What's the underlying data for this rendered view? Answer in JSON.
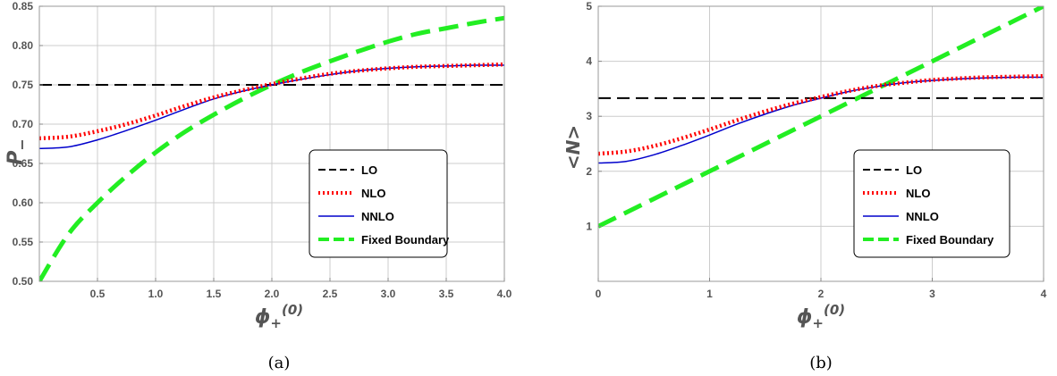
{
  "chart_data": [
    {
      "type": "line",
      "caption": "(a)",
      "xlabel": "ϕ",
      "xlabel_sub": "+",
      "xlabel_sup": "(0)",
      "ylabel": "P",
      "ylabel_sub": "−",
      "xlim": [
        0,
        4
      ],
      "ylim": [
        0.5,
        0.85
      ],
      "xticks": [
        0.5,
        1.0,
        1.5,
        2.0,
        2.5,
        3.0,
        3.5,
        4.0
      ],
      "xtick_labels": [
        "0.5",
        "1.0",
        "1.5",
        "2.0",
        "2.5",
        "3.0",
        "3.5",
        "4.0"
      ],
      "yticks": [
        0.5,
        0.55,
        0.6,
        0.65,
        0.7,
        0.75,
        0.8,
        0.85
      ],
      "ytick_labels": [
        "0.50",
        "0.55",
        "0.60",
        "0.65",
        "0.70",
        "0.75",
        "0.80",
        "0.85"
      ],
      "grid": true,
      "legend_position": "bottom-right",
      "x": [
        0,
        0.25,
        0.5,
        0.75,
        1.0,
        1.25,
        1.5,
        1.75,
        2.0,
        2.25,
        2.5,
        2.75,
        3.0,
        3.25,
        3.5,
        3.75,
        4.0
      ],
      "series": [
        {
          "name": "LO",
          "color": "#000000",
          "style": "long-dash",
          "values": [
            0.75,
            0.75,
            0.75,
            0.75,
            0.75,
            0.75,
            0.75,
            0.75,
            0.75,
            0.75,
            0.75,
            0.75,
            0.75,
            0.75,
            0.75,
            0.75,
            0.75
          ]
        },
        {
          "name": "NLO",
          "color": "#ff0000",
          "style": "dotted",
          "values": [
            0.682,
            0.684,
            0.691,
            0.7,
            0.711,
            0.723,
            0.734,
            0.743,
            0.751,
            0.758,
            0.764,
            0.768,
            0.771,
            0.773,
            0.774,
            0.775,
            0.776
          ]
        },
        {
          "name": "NNLO",
          "color": "#0000cc",
          "style": "solid",
          "values": [
            0.669,
            0.671,
            0.68,
            0.692,
            0.705,
            0.719,
            0.732,
            0.742,
            0.75,
            0.757,
            0.763,
            0.768,
            0.771,
            0.773,
            0.774,
            0.775,
            0.775
          ]
        },
        {
          "name": "Fixed Boundary",
          "color": "#22ee22",
          "style": "dashed-thick",
          "values": [
            0.5,
            0.56,
            0.6,
            0.634,
            0.664,
            0.69,
            0.712,
            0.732,
            0.75,
            0.766,
            0.78,
            0.793,
            0.805,
            0.815,
            0.822,
            0.829,
            0.835
          ]
        }
      ]
    },
    {
      "type": "line",
      "caption": "(b)",
      "xlabel": "ϕ",
      "xlabel_sub": "+",
      "xlabel_sup": "(0)",
      "ylabel": "<N>",
      "xlim": [
        0,
        4
      ],
      "ylim": [
        0,
        5
      ],
      "xticks": [
        0,
        1,
        2,
        3,
        4
      ],
      "xtick_labels": [
        "0",
        "1",
        "2",
        "3",
        "4"
      ],
      "yticks": [
        1,
        2,
        3,
        4,
        5
      ],
      "ytick_labels": [
        "1",
        "2",
        "3",
        "4",
        "5"
      ],
      "grid": true,
      "legend_position": "bottom-right",
      "x": [
        0,
        0.25,
        0.5,
        0.75,
        1.0,
        1.25,
        1.5,
        1.75,
        2.0,
        2.25,
        2.5,
        2.75,
        3.0,
        3.25,
        3.5,
        3.75,
        4.0
      ],
      "series": [
        {
          "name": "LO",
          "color": "#000000",
          "style": "long-dash",
          "values": [
            3.33,
            3.33,
            3.33,
            3.33,
            3.33,
            3.33,
            3.33,
            3.33,
            3.33,
            3.33,
            3.33,
            3.33,
            3.33,
            3.33,
            3.33,
            3.33,
            3.33
          ]
        },
        {
          "name": "NLO",
          "color": "#ff0000",
          "style": "dotted",
          "values": [
            2.32,
            2.36,
            2.46,
            2.6,
            2.76,
            2.93,
            3.09,
            3.23,
            3.35,
            3.46,
            3.55,
            3.61,
            3.66,
            3.69,
            3.71,
            3.72,
            3.73
          ]
        },
        {
          "name": "NNLO",
          "color": "#0000cc",
          "style": "solid",
          "values": [
            2.15,
            2.18,
            2.3,
            2.47,
            2.66,
            2.86,
            3.04,
            3.2,
            3.33,
            3.45,
            3.54,
            3.61,
            3.65,
            3.68,
            3.7,
            3.71,
            3.71
          ]
        },
        {
          "name": "Fixed Boundary",
          "color": "#22ee22",
          "style": "dashed-thick",
          "values": [
            1.0,
            1.25,
            1.5,
            1.75,
            2.0,
            2.25,
            2.5,
            2.75,
            3.0,
            3.25,
            3.5,
            3.75,
            4.0,
            4.25,
            4.5,
            4.75,
            5.0
          ]
        }
      ]
    }
  ]
}
